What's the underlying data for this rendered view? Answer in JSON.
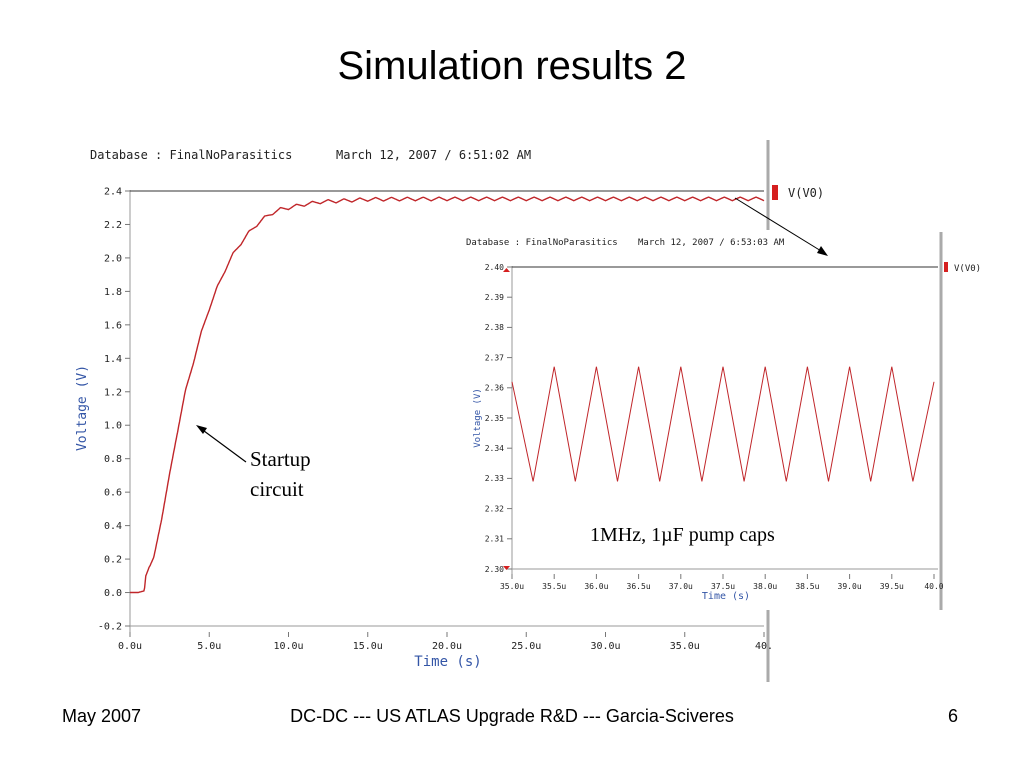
{
  "slide": {
    "title": "Simulation results 2",
    "footer_left": "May 2007",
    "footer_center": "DC-DC --- US ATLAS Upgrade R&D --- Garcia-Sciveres",
    "footer_right": "6"
  },
  "annotations": {
    "startup": "Startup\ncircuit",
    "pump": "1MHz, 1µF pump caps"
  },
  "colors": {
    "trace": "#c0262a",
    "axis_label": "#3355a6"
  },
  "chart_data": [
    {
      "type": "line",
      "database_label": "Database : FinalNoParasitics",
      "timestamp": "March 12, 2007 / 6:51:02 AM",
      "xlabel": "Time (s)",
      "ylabel": "Voltage (V)",
      "xlim": [
        0,
        40
      ],
      "ylim": [
        -0.2,
        2.4
      ],
      "x_ticks": [
        "0.0u",
        "5.0u",
        "10.0u",
        "15.0u",
        "20.0u",
        "25.0u",
        "30.0u",
        "35.0u",
        "40."
      ],
      "x_tick_values": [
        0,
        5,
        10,
        15,
        20,
        25,
        30,
        35,
        40
      ],
      "y_ticks": [
        "-0.2",
        "0.0",
        "0.2",
        "0.4",
        "0.6",
        "0.8",
        "1.0",
        "1.2",
        "1.4",
        "1.6",
        "1.8",
        "2.0",
        "2.2",
        "2.4"
      ],
      "y_tick_values": [
        -0.2,
        0.0,
        0.2,
        0.4,
        0.6,
        0.8,
        1.0,
        1.2,
        1.4,
        1.6,
        1.8,
        2.0,
        2.2,
        2.4
      ],
      "series": [
        {
          "name": "V(V0)",
          "x": [
            0,
            0.5,
            0.9,
            1.0,
            1.2,
            1.5,
            2.0,
            2.5,
            3.0,
            3.5,
            4.0,
            4.5,
            5.0,
            5.5,
            6.0,
            6.5,
            7.0,
            7.5,
            8.0,
            8.5,
            9.0,
            9.5,
            10.0,
            11.0,
            12.0,
            13.0,
            14.0,
            15.0,
            17.0,
            20.0,
            25.0,
            30.0,
            35.0,
            40.0
          ],
          "y": [
            0.0,
            0.0,
            0.01,
            0.1,
            0.15,
            0.2,
            0.45,
            0.7,
            0.97,
            1.2,
            1.38,
            1.55,
            1.7,
            1.82,
            1.93,
            2.02,
            2.09,
            2.15,
            2.2,
            2.24,
            2.27,
            2.29,
            2.3,
            2.32,
            2.335,
            2.34,
            2.345,
            2.35,
            2.352,
            2.353,
            2.353,
            2.353,
            2.353,
            2.353
          ]
        }
      ],
      "legend_position": "top-right"
    },
    {
      "type": "line",
      "database_label": "Database : FinalNoParasitics",
      "timestamp": "March 12, 2007 / 6:53:03 AM",
      "xlabel": "Time (s)",
      "ylabel": "Voltage (V)",
      "xlim": [
        35.0,
        40.0
      ],
      "ylim": [
        2.3,
        2.4
      ],
      "x_ticks": [
        "35.0u",
        "35.5u",
        "36.0u",
        "36.5u",
        "37.0u",
        "37.5u",
        "38.0u",
        "38.5u",
        "39.0u",
        "39.5u",
        "40.0"
      ],
      "x_tick_values": [
        35.0,
        35.5,
        36.0,
        36.5,
        37.0,
        37.5,
        38.0,
        38.5,
        39.0,
        39.5,
        40.0
      ],
      "y_ticks": [
        "2.30",
        "2.31",
        "2.32",
        "2.33",
        "2.34",
        "2.35",
        "2.36",
        "2.37",
        "2.38",
        "2.39",
        "2.40"
      ],
      "y_tick_values": [
        2.3,
        2.31,
        2.32,
        2.33,
        2.34,
        2.35,
        2.36,
        2.37,
        2.38,
        2.39,
        2.4
      ],
      "series": [
        {
          "name": "V(V0)",
          "x": [
            35.0,
            35.25,
            35.5,
            35.75,
            36.0,
            36.25,
            36.5,
            36.75,
            37.0,
            37.25,
            37.5,
            37.75,
            38.0,
            38.25,
            38.5,
            38.75,
            39.0,
            39.25,
            39.5,
            39.75,
            40.0
          ],
          "y": [
            2.362,
            2.329,
            2.367,
            2.329,
            2.367,
            2.329,
            2.367,
            2.329,
            2.367,
            2.329,
            2.367,
            2.329,
            2.367,
            2.329,
            2.367,
            2.329,
            2.367,
            2.329,
            2.367,
            2.329,
            2.362
          ]
        }
      ],
      "legend_position": "top-right"
    }
  ]
}
